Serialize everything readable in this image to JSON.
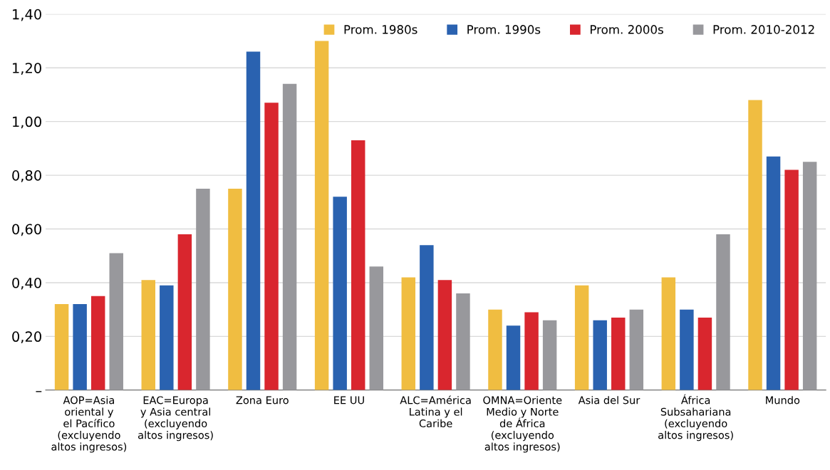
{
  "chart_data": {
    "type": "bar",
    "categories": [
      "AOP=Asia\noriental y\nel Pacífico\n(excluyendo\naltos ingresos)",
      "EAC=Europa\ny Asia central\n(excluyendo\naltos ingresos)",
      "Zona Euro",
      "EE UU",
      "ALC=América\nLatina y el\nCaribe",
      "OMNA=Oriente\nMedio y Norte\nde África\n(excluyendo\naltos ingresos)",
      "Asia del Sur",
      "África\nSubsahariana\n(excluyendo\naltos ingresos)",
      "Mundo"
    ],
    "series": [
      {
        "name": "Prom. 1980s",
        "color": "#f0bd41",
        "values": [
          0.32,
          0.41,
          0.75,
          1.3,
          0.42,
          0.3,
          0.39,
          0.42,
          1.08
        ]
      },
      {
        "name": "Prom. 1990s",
        "color": "#2a62b0",
        "values": [
          0.32,
          0.39,
          1.26,
          0.72,
          0.54,
          0.24,
          0.26,
          0.3,
          0.87
        ]
      },
      {
        "name": "Prom. 2000s",
        "color": "#d9262e",
        "values": [
          0.35,
          0.58,
          1.07,
          0.93,
          0.41,
          0.29,
          0.27,
          0.27,
          0.82
        ]
      },
      {
        "name": "Prom. 2010-2012",
        "color": "#98989c",
        "values": [
          0.51,
          0.75,
          1.14,
          0.46,
          0.36,
          0.26,
          0.3,
          0.58,
          0.85
        ]
      }
    ],
    "ylim": [
      0,
      1.4
    ],
    "yticks": [
      {
        "value": 0,
        "label": "–"
      },
      {
        "value": 0.2,
        "label": "0,20"
      },
      {
        "value": 0.4,
        "label": "0,40"
      },
      {
        "value": 0.6,
        "label": "0,60"
      },
      {
        "value": 0.8,
        "label": "0,80"
      },
      {
        "value": 1.0,
        "label": "1,00"
      },
      {
        "value": 1.2,
        "label": "1,20"
      },
      {
        "value": 1.4,
        "label": "1,40"
      }
    ],
    "grid": "y",
    "legend": "top right"
  }
}
